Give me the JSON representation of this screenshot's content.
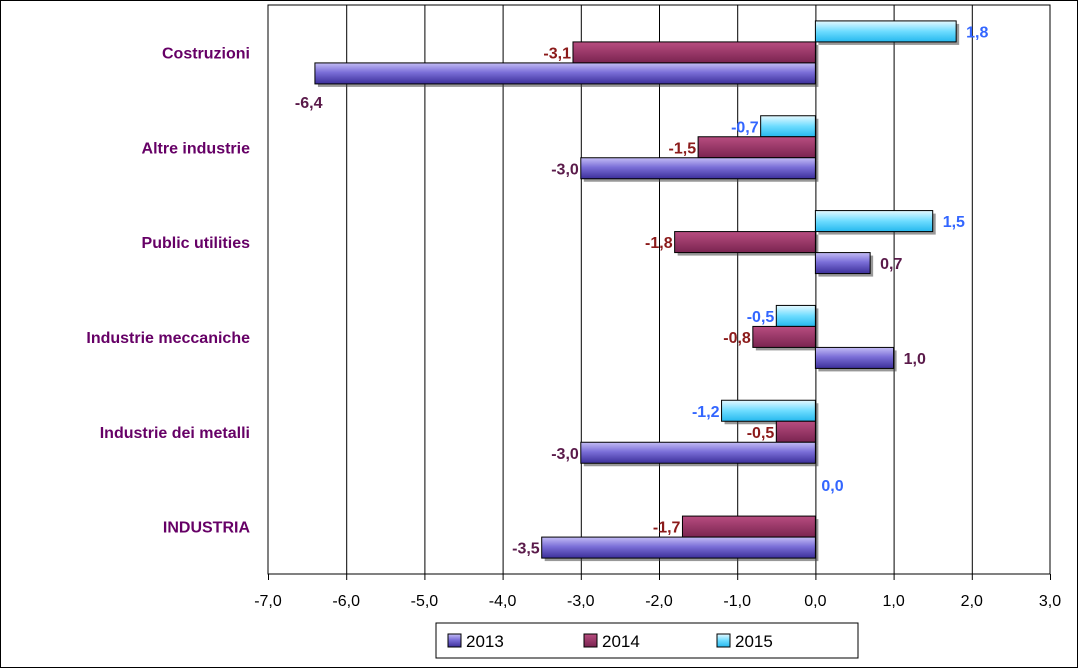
{
  "chart_data": {
    "type": "bar",
    "orientation": "horizontal",
    "categories": [
      "INDUSTRIA",
      "Industrie dei metalli",
      "Industrie meccaniche",
      "Public utilities",
      "Altre industrie",
      "Costruzioni"
    ],
    "series": [
      {
        "name": "2013",
        "color": "#7b6fd8",
        "label_color": "#5a1a4a",
        "values": [
          -3.5,
          -3.0,
          1.0,
          0.7,
          -3.0,
          -6.4
        ],
        "labels": [
          "-3,5",
          "-3,0",
          "1,0",
          "0,7",
          "-3,0",
          "-6,4"
        ]
      },
      {
        "name": "2014",
        "color": "#993366",
        "label_color": "#8b1a1a",
        "values": [
          -1.7,
          -0.5,
          -0.8,
          -1.8,
          -1.5,
          -3.1
        ],
        "labels": [
          "-1,7",
          "-0,5",
          "-0,8",
          "-1,8",
          "-1,5",
          "-3,1"
        ]
      },
      {
        "name": "2015",
        "color": "#33ccff",
        "label_color": "#3366ff",
        "values": [
          0.0,
          -1.2,
          -0.5,
          1.5,
          -0.7,
          1.8
        ],
        "labels": [
          "0,0",
          "-1,2",
          "-0,5",
          "1,5",
          "-0,7",
          "1,8"
        ]
      }
    ],
    "xlim": [
      -7.0,
      3.0
    ],
    "xticks": [
      -7,
      -6,
      -5,
      -4,
      -3,
      -2,
      -1,
      0,
      1,
      2,
      3
    ],
    "xtick_labels": [
      "-7,0",
      "-6,0",
      "-5,0",
      "-4,0",
      "-3,0",
      "-2,0",
      "-1,0",
      "0,0",
      "1,0",
      "2,0",
      "3,0"
    ],
    "grid": "vertical",
    "legend_position": "bottom"
  }
}
